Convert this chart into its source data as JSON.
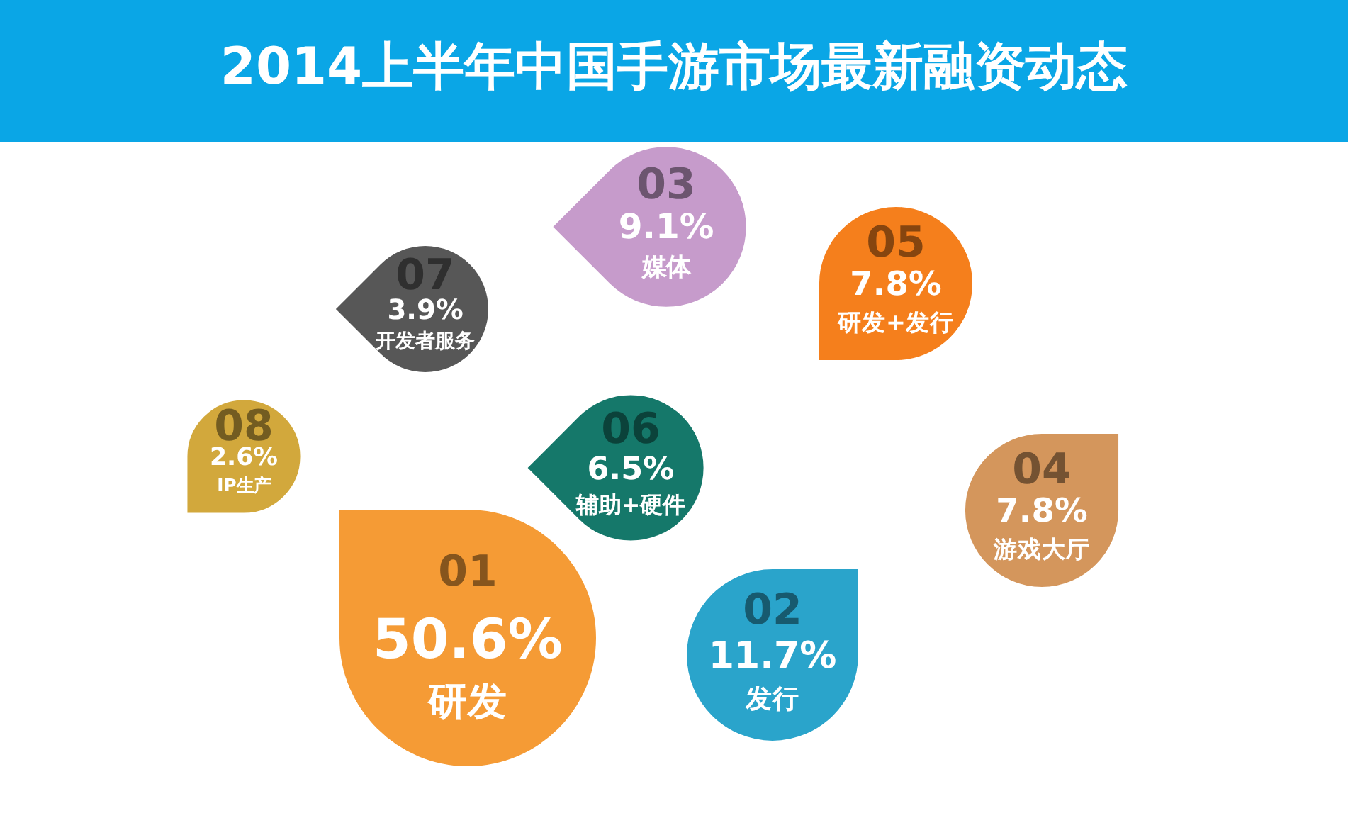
{
  "chart_data": {
    "type": "other",
    "title": "2014上半年中国手游市场最新融资动态",
    "categories": [
      "研发",
      "发行",
      "媒体",
      "游戏大厅",
      "研发+发行",
      "辅助+硬件",
      "开发者服务",
      "IP生产"
    ],
    "values": [
      50.6,
      11.7,
      9.1,
      7.8,
      7.8,
      6.5,
      3.9,
      2.6
    ],
    "value_labels": [
      "50.6%",
      "11.7%",
      "9.1%",
      "7.8%",
      "7.8%",
      "6.5%",
      "3.9%",
      "2.6%"
    ],
    "colors": [
      "#f59b35",
      "#2aa4cb",
      "#c69bcb",
      "#d4965c",
      "#f57f1c",
      "#15786a",
      "#575757",
      "#d2a83c"
    ],
    "annotations": [
      "01",
      "02",
      "03",
      "04",
      "05",
      "06",
      "07",
      "08"
    ]
  }
}
